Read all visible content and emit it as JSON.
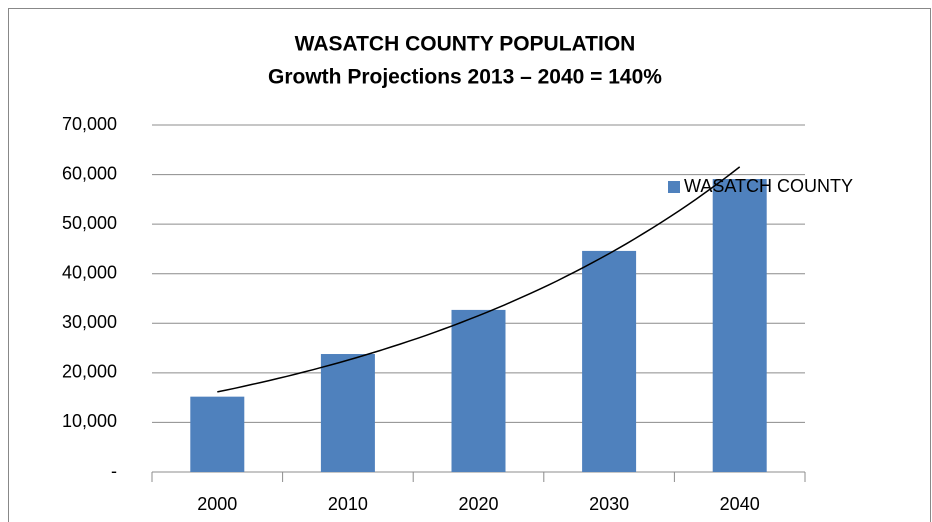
{
  "chart_data": {
    "type": "bar",
    "title": "WASATCH COUNTY POPULATION",
    "subtitle": "Growth Projections 2013 – 2040 = 140%",
    "categories": [
      "2000",
      "2010",
      "2020",
      "2030",
      "2040"
    ],
    "series": [
      {
        "name": "WASATCH COUNTY",
        "color": "#4f81bd",
        "values": [
          15200,
          23800,
          32700,
          44600,
          59100
        ]
      }
    ],
    "ylim": [
      0,
      70000
    ],
    "yticks": [
      {
        "value": 0,
        "label": "-"
      },
      {
        "value": 10000,
        "label": "10,000"
      },
      {
        "value": 20000,
        "label": "20,000"
      },
      {
        "value": 30000,
        "label": "30,000"
      },
      {
        "value": 40000,
        "label": "40,000"
      },
      {
        "value": 50000,
        "label": "50,000"
      },
      {
        "value": 60000,
        "label": "60,000"
      },
      {
        "value": 70000,
        "label": "70,000"
      }
    ],
    "grid": true,
    "legend": "top-right",
    "trendline": "exponential"
  }
}
